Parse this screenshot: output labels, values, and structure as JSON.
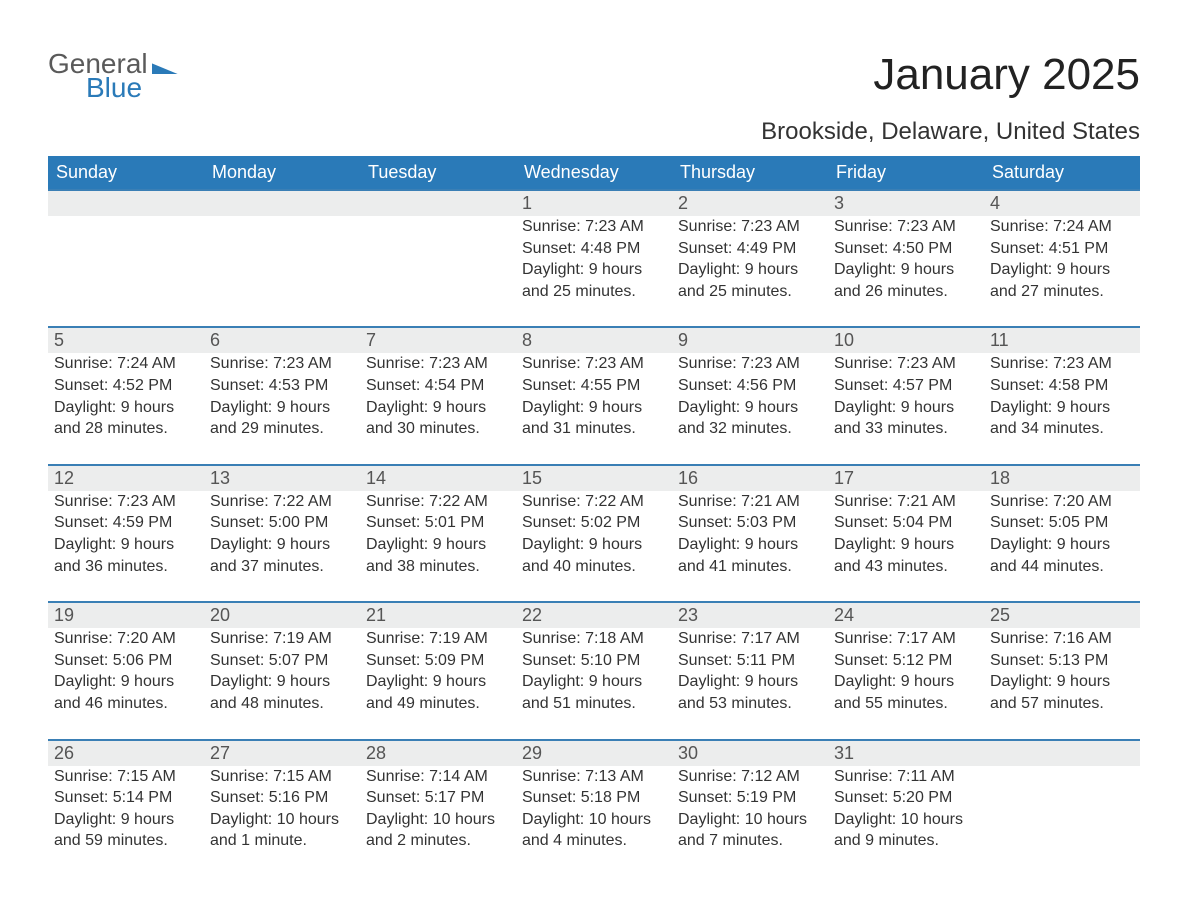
{
  "logo": {
    "word1": "General",
    "word2": "Blue"
  },
  "title": "January 2025",
  "location": "Brookside, Delaware, United States",
  "colors": {
    "header_bg": "#2a7ab8",
    "header_text": "#ffffff",
    "daynum_bg": "#eceded",
    "row_border": "#3a7fb5",
    "body_text": "#333333",
    "logo_gray": "#5a5a5a",
    "logo_blue": "#2a7ab8",
    "page_bg": "#ffffff"
  },
  "weekdays": [
    "Sunday",
    "Monday",
    "Tuesday",
    "Wednesday",
    "Thursday",
    "Friday",
    "Saturday"
  ],
  "weeks": [
    [
      null,
      null,
      null,
      {
        "day": "1",
        "sunrise": "Sunrise: 7:23 AM",
        "sunset": "Sunset: 4:48 PM",
        "daylight": "Daylight: 9 hours and 25 minutes."
      },
      {
        "day": "2",
        "sunrise": "Sunrise: 7:23 AM",
        "sunset": "Sunset: 4:49 PM",
        "daylight": "Daylight: 9 hours and 25 minutes."
      },
      {
        "day": "3",
        "sunrise": "Sunrise: 7:23 AM",
        "sunset": "Sunset: 4:50 PM",
        "daylight": "Daylight: 9 hours and 26 minutes."
      },
      {
        "day": "4",
        "sunrise": "Sunrise: 7:24 AM",
        "sunset": "Sunset: 4:51 PM",
        "daylight": "Daylight: 9 hours and 27 minutes."
      }
    ],
    [
      {
        "day": "5",
        "sunrise": "Sunrise: 7:24 AM",
        "sunset": "Sunset: 4:52 PM",
        "daylight": "Daylight: 9 hours and 28 minutes."
      },
      {
        "day": "6",
        "sunrise": "Sunrise: 7:23 AM",
        "sunset": "Sunset: 4:53 PM",
        "daylight": "Daylight: 9 hours and 29 minutes."
      },
      {
        "day": "7",
        "sunrise": "Sunrise: 7:23 AM",
        "sunset": "Sunset: 4:54 PM",
        "daylight": "Daylight: 9 hours and 30 minutes."
      },
      {
        "day": "8",
        "sunrise": "Sunrise: 7:23 AM",
        "sunset": "Sunset: 4:55 PM",
        "daylight": "Daylight: 9 hours and 31 minutes."
      },
      {
        "day": "9",
        "sunrise": "Sunrise: 7:23 AM",
        "sunset": "Sunset: 4:56 PM",
        "daylight": "Daylight: 9 hours and 32 minutes."
      },
      {
        "day": "10",
        "sunrise": "Sunrise: 7:23 AM",
        "sunset": "Sunset: 4:57 PM",
        "daylight": "Daylight: 9 hours and 33 minutes."
      },
      {
        "day": "11",
        "sunrise": "Sunrise: 7:23 AM",
        "sunset": "Sunset: 4:58 PM",
        "daylight": "Daylight: 9 hours and 34 minutes."
      }
    ],
    [
      {
        "day": "12",
        "sunrise": "Sunrise: 7:23 AM",
        "sunset": "Sunset: 4:59 PM",
        "daylight": "Daylight: 9 hours and 36 minutes."
      },
      {
        "day": "13",
        "sunrise": "Sunrise: 7:22 AM",
        "sunset": "Sunset: 5:00 PM",
        "daylight": "Daylight: 9 hours and 37 minutes."
      },
      {
        "day": "14",
        "sunrise": "Sunrise: 7:22 AM",
        "sunset": "Sunset: 5:01 PM",
        "daylight": "Daylight: 9 hours and 38 minutes."
      },
      {
        "day": "15",
        "sunrise": "Sunrise: 7:22 AM",
        "sunset": "Sunset: 5:02 PM",
        "daylight": "Daylight: 9 hours and 40 minutes."
      },
      {
        "day": "16",
        "sunrise": "Sunrise: 7:21 AM",
        "sunset": "Sunset: 5:03 PM",
        "daylight": "Daylight: 9 hours and 41 minutes."
      },
      {
        "day": "17",
        "sunrise": "Sunrise: 7:21 AM",
        "sunset": "Sunset: 5:04 PM",
        "daylight": "Daylight: 9 hours and 43 minutes."
      },
      {
        "day": "18",
        "sunrise": "Sunrise: 7:20 AM",
        "sunset": "Sunset: 5:05 PM",
        "daylight": "Daylight: 9 hours and 44 minutes."
      }
    ],
    [
      {
        "day": "19",
        "sunrise": "Sunrise: 7:20 AM",
        "sunset": "Sunset: 5:06 PM",
        "daylight": "Daylight: 9 hours and 46 minutes."
      },
      {
        "day": "20",
        "sunrise": "Sunrise: 7:19 AM",
        "sunset": "Sunset: 5:07 PM",
        "daylight": "Daylight: 9 hours and 48 minutes."
      },
      {
        "day": "21",
        "sunrise": "Sunrise: 7:19 AM",
        "sunset": "Sunset: 5:09 PM",
        "daylight": "Daylight: 9 hours and 49 minutes."
      },
      {
        "day": "22",
        "sunrise": "Sunrise: 7:18 AM",
        "sunset": "Sunset: 5:10 PM",
        "daylight": "Daylight: 9 hours and 51 minutes."
      },
      {
        "day": "23",
        "sunrise": "Sunrise: 7:17 AM",
        "sunset": "Sunset: 5:11 PM",
        "daylight": "Daylight: 9 hours and 53 minutes."
      },
      {
        "day": "24",
        "sunrise": "Sunrise: 7:17 AM",
        "sunset": "Sunset: 5:12 PM",
        "daylight": "Daylight: 9 hours and 55 minutes."
      },
      {
        "day": "25",
        "sunrise": "Sunrise: 7:16 AM",
        "sunset": "Sunset: 5:13 PM",
        "daylight": "Daylight: 9 hours and 57 minutes."
      }
    ],
    [
      {
        "day": "26",
        "sunrise": "Sunrise: 7:15 AM",
        "sunset": "Sunset: 5:14 PM",
        "daylight": "Daylight: 9 hours and 59 minutes."
      },
      {
        "day": "27",
        "sunrise": "Sunrise: 7:15 AM",
        "sunset": "Sunset: 5:16 PM",
        "daylight": "Daylight: 10 hours and 1 minute."
      },
      {
        "day": "28",
        "sunrise": "Sunrise: 7:14 AM",
        "sunset": "Sunset: 5:17 PM",
        "daylight": "Daylight: 10 hours and 2 minutes."
      },
      {
        "day": "29",
        "sunrise": "Sunrise: 7:13 AM",
        "sunset": "Sunset: 5:18 PM",
        "daylight": "Daylight: 10 hours and 4 minutes."
      },
      {
        "day": "30",
        "sunrise": "Sunrise: 7:12 AM",
        "sunset": "Sunset: 5:19 PM",
        "daylight": "Daylight: 10 hours and 7 minutes."
      },
      {
        "day": "31",
        "sunrise": "Sunrise: 7:11 AM",
        "sunset": "Sunset: 5:20 PM",
        "daylight": "Daylight: 10 hours and 9 minutes."
      },
      null
    ]
  ]
}
